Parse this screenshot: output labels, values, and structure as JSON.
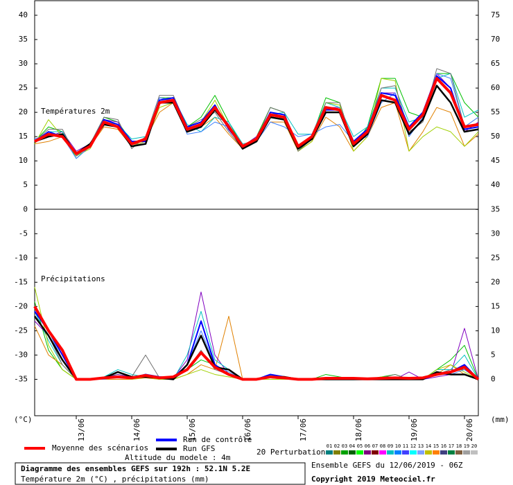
{
  "chart_data": {
    "type": "ensemble",
    "temperature_label": "Températures 2m",
    "precipitation_label": "Précipitations",
    "y_unit": "(°C)",
    "y2_unit": "(mm)",
    "xlim": [
      0,
      192
    ],
    "x": [
      0,
      6,
      12,
      18,
      24,
      30,
      36,
      42,
      48,
      54,
      60,
      66,
      72,
      78,
      84,
      90,
      96,
      102,
      108,
      114,
      120,
      126,
      132,
      138,
      144,
      150,
      156,
      162,
      168,
      174,
      180,
      186,
      192
    ],
    "xticks": [
      {
        "value": 18,
        "label": "13/06"
      },
      {
        "value": 42,
        "label": "14/06"
      },
      {
        "value": 66,
        "label": "15/06"
      },
      {
        "value": 90,
        "label": "16/06"
      },
      {
        "value": 114,
        "label": "17/06"
      },
      {
        "value": 138,
        "label": "18/06"
      },
      {
        "value": 162,
        "label": "19/06"
      },
      {
        "value": 186,
        "label": "20/06"
      }
    ],
    "ylim": [
      -42.5,
      43
    ],
    "yticks": [
      -35,
      -30,
      -25,
      -20,
      -15,
      -10,
      -5,
      0,
      5,
      10,
      15,
      20,
      25,
      30,
      35,
      40
    ],
    "y2lim": [
      -7.5,
      78
    ],
    "y2ticks": [
      0,
      5,
      10,
      15,
      20,
      25,
      30,
      35,
      40,
      45,
      50,
      55,
      60,
      65,
      70,
      75
    ],
    "series": [
      {
        "name": "Moyenne des scénarios",
        "color": "#ff0000",
        "width": 4,
        "temperature": [
          14,
          15.5,
          15,
          11.5,
          13,
          18,
          17,
          13.5,
          14.5,
          22,
          22.5,
          16.5,
          17.5,
          21,
          17,
          13,
          14.5,
          19.5,
          19,
          13,
          15,
          21,
          20.5,
          13.5,
          16,
          23.5,
          22.5,
          16.5,
          19.5,
          27,
          24,
          17,
          17.5
        ],
        "precipitation": [
          15,
          10,
          6,
          0,
          0,
          0.3,
          0.5,
          0.3,
          0.8,
          0.3,
          0.5,
          2,
          5.5,
          2.5,
          1,
          0,
          0,
          0.5,
          0.3,
          0,
          0,
          0.2,
          0.2,
          0.2,
          0.1,
          0.2,
          0.3,
          0.2,
          0.3,
          1,
          1.5,
          2.5,
          0
        ]
      },
      {
        "name": "Run de contrôle",
        "color": "#0000ff",
        "width": 2,
        "temperature": [
          14,
          16,
          15,
          11.5,
          13,
          18.5,
          17.5,
          14,
          14,
          22.5,
          23,
          17,
          18,
          21.5,
          16.5,
          13,
          14.5,
          20,
          19.5,
          13,
          15,
          20.5,
          20.5,
          14,
          16.5,
          24,
          23.5,
          17,
          20,
          27.5,
          25,
          16.5,
          17
        ],
        "precipitation": [
          14,
          10,
          5,
          0,
          0,
          0.3,
          0.5,
          0.3,
          1,
          0.5,
          0.3,
          3,
          12,
          3,
          1,
          0,
          0,
          1,
          0.5,
          0,
          0,
          0,
          0,
          0,
          0,
          0,
          0,
          0,
          0,
          1,
          1.5,
          3,
          0
        ]
      },
      {
        "name": "Run GFS",
        "color": "#000000",
        "width": 2.5,
        "temperature": [
          14,
          15,
          15.5,
          11.5,
          13.5,
          17.5,
          17,
          13,
          13.5,
          22,
          22,
          16,
          17,
          20.5,
          17,
          12.5,
          14,
          19,
          18.5,
          12.5,
          14.5,
          20,
          20,
          13,
          15.5,
          22.5,
          22,
          15.5,
          18.5,
          25.5,
          22,
          16,
          16.5
        ],
        "precipitation": [
          13,
          9,
          4,
          0,
          0,
          0.3,
          1.5,
          0.5,
          0.5,
          0.3,
          0,
          3,
          9,
          2.5,
          2,
          0,
          0,
          0.5,
          0.5,
          0,
          0,
          0,
          0,
          0,
          0,
          0,
          0,
          0,
          0,
          1.5,
          1,
          1,
          0
        ]
      }
    ],
    "perturbations": {
      "label": "20 Perturbations",
      "members": [
        {
          "name": "01",
          "color": "#008080"
        },
        {
          "name": "02",
          "color": "#808000"
        },
        {
          "name": "03",
          "color": "#00a000"
        },
        {
          "name": "04",
          "color": "#006000"
        },
        {
          "name": "05",
          "color": "#00ff00"
        },
        {
          "name": "06",
          "color": "#800080"
        },
        {
          "name": "07",
          "color": "#800000"
        },
        {
          "name": "08",
          "color": "#ff00ff"
        },
        {
          "name": "09",
          "color": "#00c0c0"
        },
        {
          "name": "10",
          "color": "#0080ff"
        },
        {
          "name": "11",
          "color": "#4040ff"
        },
        {
          "name": "12",
          "color": "#00ffff"
        },
        {
          "name": "13",
          "color": "#80a0ff"
        },
        {
          "name": "14",
          "color": "#c0c000"
        },
        {
          "name": "15",
          "color": "#ff8000"
        },
        {
          "name": "16",
          "color": "#404080"
        },
        {
          "name": "17",
          "color": "#008040"
        },
        {
          "name": "18",
          "color": "#806040"
        },
        {
          "name": "19",
          "color": "#a0a0a0"
        },
        {
          "name": "20",
          "color": "#c0c0c0"
        }
      ],
      "series": [
        {
          "color": "#00c000",
          "temperature": [
            14,
            17,
            16,
            10.5,
            13,
            19,
            18,
            14,
            14,
            23,
            23,
            17,
            19,
            23.5,
            18,
            13,
            15,
            21,
            20,
            12,
            15,
            23,
            22,
            13,
            17,
            27,
            27,
            20,
            19,
            28,
            28,
            22,
            19
          ],
          "precipitation": [
            16,
            6,
            2,
            0,
            0,
            0.5,
            1,
            0.5,
            1,
            0.5,
            0,
            2,
            4,
            3,
            1,
            0,
            0,
            0.5,
            0.5,
            0,
            0,
            1,
            0.5,
            0,
            0,
            0.5,
            1,
            0,
            0,
            2,
            4,
            7,
            0
          ]
        },
        {
          "color": "#e08000",
          "temperature": [
            13.5,
            14,
            15,
            11.5,
            13,
            17,
            16.5,
            13,
            14.5,
            20,
            22,
            17,
            17,
            19,
            15.5,
            12.5,
            14,
            18,
            18,
            12,
            14,
            19,
            17,
            12,
            15,
            21,
            22,
            12,
            16,
            21,
            20,
            13,
            15.5
          ],
          "precipitation": [
            11,
            5,
            3,
            0,
            0,
            0,
            0,
            0,
            0.3,
            0,
            0,
            1,
            3,
            2,
            13,
            0,
            0,
            0.3,
            0,
            0,
            0,
            0,
            0,
            0,
            0,
            0,
            0,
            0,
            0,
            1,
            3,
            1,
            0
          ]
        },
        {
          "color": "#8000c0",
          "temperature": [
            14.5,
            15,
            16,
            12,
            13.5,
            18.5,
            18,
            13,
            14,
            23,
            22.5,
            16,
            17.5,
            21,
            17.5,
            13,
            15,
            20,
            19,
            13,
            15,
            21,
            21,
            14,
            16,
            24,
            24,
            17,
            20,
            28,
            25,
            16,
            18
          ],
          "precipitation": [
            12,
            9,
            4,
            0,
            0,
            0.3,
            1,
            0.5,
            1,
            0.3,
            0.3,
            4,
            18,
            5,
            1,
            0,
            0,
            1,
            0.5,
            0,
            0,
            0,
            0,
            0,
            0,
            0,
            0,
            1.5,
            0,
            0.5,
            1,
            10.5,
            0
          ]
        },
        {
          "color": "#00c0c0",
          "temperature": [
            14,
            16,
            16,
            11,
            13,
            18,
            17.5,
            14.5,
            15,
            22,
            23,
            17.5,
            16,
            19,
            18,
            13.5,
            14,
            19.5,
            20,
            15.5,
            15.5,
            22,
            21,
            15,
            17,
            25,
            25,
            18,
            19,
            27,
            28,
            19,
            20.5
          ],
          "precipitation": [
            14,
            8,
            3,
            0,
            0,
            0.5,
            2,
            1,
            0.5,
            0.5,
            0,
            5,
            14,
            4,
            2,
            0,
            0,
            0.8,
            0.5,
            0,
            0,
            0.3,
            0,
            0,
            0,
            0.3,
            0,
            0,
            0,
            2,
            2,
            5,
            0
          ]
        },
        {
          "color": "#a0d000",
          "temperature": [
            13.5,
            18.5,
            15,
            11,
            12.5,
            18,
            17,
            13,
            14,
            21,
            22,
            17,
            18,
            22.5,
            17,
            12.5,
            14,
            20,
            19.5,
            12,
            14,
            22,
            21.5,
            12,
            15,
            27,
            26.5,
            12,
            15,
            17,
            16,
            13,
            16
          ],
          "precipitation": [
            19,
            7,
            2,
            0,
            0,
            0.3,
            0.5,
            0,
            0.5,
            0,
            0,
            1,
            2,
            1,
            0.5,
            0,
            0,
            0,
            0,
            0,
            0,
            0,
            0,
            0,
            0,
            0.5,
            0.5,
            0,
            0,
            2,
            3,
            1.5,
            0
          ]
        },
        {
          "color": "#707070",
          "temperature": [
            14,
            16.5,
            16.5,
            11,
            13.5,
            19,
            18.5,
            12.5,
            15,
            23.5,
            23.5,
            17,
            18.5,
            20,
            16,
            12.5,
            14.5,
            21,
            20,
            12,
            14.5,
            22,
            22,
            13,
            16,
            25,
            25.5,
            16,
            18,
            29,
            28,
            17,
            19
          ],
          "precipitation": [
            13,
            9,
            3,
            0,
            0,
            0.3,
            0.5,
            0.5,
            5,
            0.3,
            0,
            2,
            6,
            2,
            1,
            0,
            0,
            0.5,
            0.5,
            0,
            0,
            0,
            0,
            0,
            0,
            0.3,
            1,
            0,
            0,
            1,
            2,
            2,
            0
          ]
        },
        {
          "color": "#4080ff",
          "temperature": [
            14.5,
            15.5,
            15,
            10.5,
            13,
            18,
            17,
            13.5,
            14.5,
            23,
            22.5,
            15.5,
            16,
            18,
            17,
            12.5,
            14,
            18,
            17,
            15,
            15.5,
            17,
            17.5,
            14,
            15,
            22,
            24,
            15,
            19,
            28,
            27,
            17,
            19
          ],
          "precipitation": [
            15,
            10,
            4,
            0,
            0,
            0,
            0.5,
            0.3,
            1,
            0.3,
            0.3,
            3,
            10,
            3,
            1.5,
            0,
            0,
            0.5,
            0.3,
            0,
            0,
            0,
            0,
            0,
            0,
            0,
            0,
            0,
            0,
            1,
            1,
            2,
            0
          ]
        }
      ]
    },
    "footer": {
      "title": "Diagramme des ensembles GEFS sur 192h : 52.1N 5.2E",
      "subtitle": "Température 2m (°C) , précipitations (mm)",
      "altitude": "Altitude du modele : 4m",
      "run": "Ensemble GEFS du 12/06/2019 - 06Z",
      "copyright": "Copyright 2019 Meteociel.fr"
    }
  }
}
